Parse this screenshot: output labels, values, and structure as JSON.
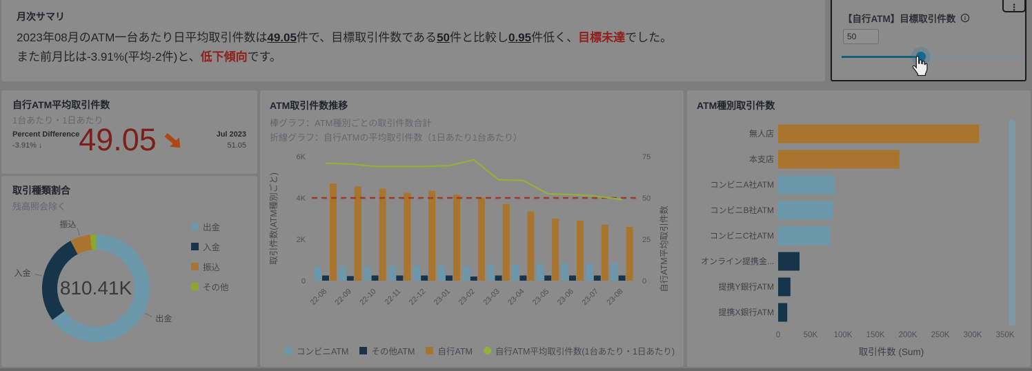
{
  "summary": {
    "title": "月次サマリ",
    "line1": [
      {
        "t": "2023年08月のATM一台あたり日平均取引件数は",
        "s": "n"
      },
      {
        "t": "49.05",
        "s": "bu"
      },
      {
        "t": "件で、目標取引件数である",
        "s": "n"
      },
      {
        "t": "50",
        "s": "bu"
      },
      {
        "t": "件と比較し",
        "s": "n"
      },
      {
        "t": "0.95",
        "s": "bu"
      },
      {
        "t": "件低く、",
        "s": "n"
      },
      {
        "t": "目標未達",
        "s": "rb"
      },
      {
        "t": "でした。",
        "s": "n"
      }
    ],
    "line2": [
      {
        "t": "また前月比は-3.91%(平均-2件)と、",
        "s": "n"
      },
      {
        "t": "低下傾向",
        "s": "rb"
      },
      {
        "t": "です。",
        "s": "n"
      }
    ]
  },
  "slider_panel": {
    "title": "【自行ATM】目標取引件数",
    "info_glyph": "i",
    "menu_glyph": "⋮",
    "value": "50",
    "position_pct": 45
  },
  "kpi": {
    "title": "自行ATM平均取引件数",
    "subtitle": "1台あたり・1日あたり",
    "diff_label": "Percent Difference",
    "diff_value": "-3.91% ↓",
    "value": "49.05",
    "compare_label": "Jul 2023",
    "compare_value": "51.05"
  },
  "chart_data": [
    {
      "type": "pie",
      "title": "取引種類割合",
      "subtitle": "残高照会除く",
      "center_label": "810.41K",
      "labels": [
        "出金",
        "入金",
        "振込",
        "その他"
      ],
      "values_pct": [
        65.0,
        27.2,
        6.1,
        1.7
      ],
      "values_est": [
        527000,
        220000,
        49000,
        14000
      ],
      "colors": [
        "#6c98ac",
        "#16354a",
        "#a9742e",
        "#8ba72c"
      ],
      "callout": [
        true,
        true,
        true,
        false
      ],
      "legend_position": "right"
    },
    {
      "type": "bar+line",
      "title": "ATM取引件数推移",
      "subtitle1": "棒グラフ：ATM種別ごとの取引件数合計",
      "subtitle2": "折線グラフ：自行ATMの平均取引件数（1日あたり1台あたり）",
      "categories": [
        "22-08",
        "22-09",
        "22-10",
        "22-11",
        "22-12",
        "23-01",
        "23-02",
        "23-03",
        "23-04",
        "23-05",
        "23-06",
        "23-07",
        "23-08"
      ],
      "series": [
        {
          "name": "コンビニATM",
          "type": "bar",
          "color": "#6c98ac",
          "values": [
            650,
            700,
            650,
            700,
            720,
            720,
            680,
            750,
            780,
            800,
            820,
            820,
            850
          ]
        },
        {
          "name": "その他ATM",
          "type": "bar",
          "color": "#16354a",
          "values": [
            250,
            220,
            250,
            250,
            250,
            250,
            200,
            250,
            250,
            250,
            250,
            250,
            250
          ]
        },
        {
          "name": "自行ATM",
          "type": "bar",
          "color": "#a9742e",
          "values": [
            4700,
            4550,
            4450,
            4250,
            4350,
            4150,
            4000,
            3700,
            3350,
            3000,
            2900,
            2700,
            2600
          ]
        },
        {
          "name": "自行ATM平均取引件数(1台あたり・1日あたり)",
          "type": "line",
          "axis": "right",
          "color": "#93b13a",
          "values": [
            71,
            70.5,
            69,
            69,
            69,
            69.5,
            73,
            61,
            60.5,
            52.5,
            52,
            51,
            49
          ]
        }
      ],
      "left_axis": {
        "title": "取引件数(ATM種別ごと)",
        "ticks": [
          "0",
          "2K",
          "4K",
          "6K"
        ],
        "max": 6000
      },
      "right_axis": {
        "title": "自行ATM平均取引件数",
        "ticks": [
          "0",
          "25",
          "50",
          "75"
        ],
        "max": 75
      },
      "ref_line": {
        "axis": "right",
        "value": 50,
        "color": "#9c3a23",
        "style": "dashed"
      }
    },
    {
      "type": "bar",
      "orientation": "horizontal",
      "title": "ATM種別取引件数",
      "categories": [
        "無人店",
        "本支店",
        "コンビニA社ATM",
        "コンビニB社ATM",
        "コンビニC社ATM",
        "オンライン提携金...",
        "提携Y銀行ATM",
        "提携X銀行ATM"
      ],
      "values": [
        310000,
        187000,
        87000,
        84000,
        80000,
        33000,
        19000,
        14000
      ],
      "bar_colors": [
        "#a9742e",
        "#a9742e",
        "#6c98ac",
        "#6c98ac",
        "#6c98ac",
        "#16354a",
        "#16354a",
        "#16354a"
      ],
      "x_ticks": [
        "0",
        "50K",
        "100K",
        "150K",
        "200K",
        "250K",
        "300K",
        "350K"
      ],
      "xmax": 350000,
      "xlabel": "取引件数 (Sum)"
    }
  ]
}
